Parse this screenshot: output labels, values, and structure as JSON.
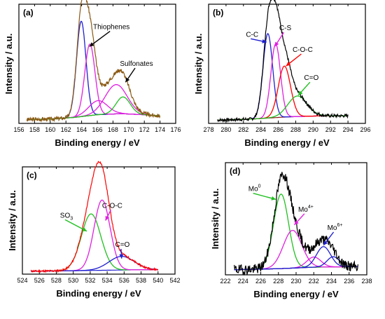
{
  "chart_data": [
    {
      "type": "line",
      "panel_label": "(a)",
      "xlabel": "Binding energy / eV",
      "ylabel": "Intensity / a.u.",
      "xlim": [
        156,
        176
      ],
      "xticks": [
        156,
        158,
        160,
        162,
        164,
        166,
        168,
        170,
        172,
        174,
        176
      ],
      "ylim": [
        0,
        1.1
      ],
      "legend": "none",
      "annotations": [
        {
          "text": "Thiophenes",
          "x": 167.8,
          "y": 0.87,
          "arrow_to": [
            165.0,
            0.71
          ],
          "color": "#000000"
        },
        {
          "text": "Sulfonates",
          "x": 171.0,
          "y": 0.53,
          "arrow_to": [
            169.6,
            0.38
          ],
          "color": "#000000"
        }
      ],
      "background": {
        "color": "#8B1A1A",
        "points": [
          [
            157,
            0.035
          ],
          [
            160,
            0.04
          ],
          [
            163,
            0.055
          ],
          [
            166,
            0.08
          ],
          [
            169,
            0.09
          ],
          [
            172,
            0.08
          ],
          [
            174,
            0.07
          ]
        ]
      },
      "peaks": [
        {
          "center": 163.95,
          "height": 0.88,
          "width": 0.6,
          "color": "#1F1FD0"
        },
        {
          "center": 165.05,
          "height": 0.66,
          "width": 0.65,
          "color": "#E020E0"
        },
        {
          "center": 166.1,
          "height": 0.13,
          "width": 1.2,
          "color": "#E020E0"
        },
        {
          "center": 168.4,
          "height": 0.27,
          "width": 1.4,
          "color": "#E020E0"
        },
        {
          "center": 169.3,
          "height": 0.155,
          "width": 0.9,
          "color": "#20C020"
        }
      ],
      "envelope_color": "#8B5A14",
      "noise": 0.018,
      "x_range": [
        157,
        174
      ],
      "seed": 3
    },
    {
      "type": "line",
      "panel_label": "(b)",
      "xlabel": "Binding energy / eV",
      "ylabel": "Intensity / a.u.",
      "xlim": [
        278,
        296
      ],
      "xticks": [
        278,
        280,
        282,
        284,
        286,
        288,
        290,
        292,
        294,
        296
      ],
      "ylim": [
        0,
        1.1
      ],
      "legend": "none",
      "annotations": [
        {
          "text": "C-C",
          "x": 283.0,
          "y": 0.8,
          "arrow_to": [
            284.65,
            0.75
          ],
          "color": "#1F1FD0"
        },
        {
          "text": "C-S",
          "x": 286.8,
          "y": 0.86,
          "arrow_to": [
            285.6,
            0.71
          ],
          "color": "#E020E0"
        },
        {
          "text": "C-O-C",
          "x": 288.8,
          "y": 0.66,
          "arrow_to": [
            286.9,
            0.53
          ],
          "color": "#FF0000"
        },
        {
          "text": "C=O",
          "x": 289.8,
          "y": 0.4,
          "arrow_to": [
            288.3,
            0.26
          ],
          "color": "#20C020"
        }
      ],
      "background": {
        "color": "#8B1A1A",
        "points": [
          [
            279,
            0.03
          ],
          [
            283,
            0.04
          ],
          [
            287,
            0.06
          ],
          [
            291,
            0.07
          ],
          [
            294,
            0.07
          ]
        ]
      },
      "peaks": [
        {
          "center": 284.8,
          "height": 0.78,
          "width": 0.55,
          "color": "#1F1FD0"
        },
        {
          "center": 285.7,
          "height": 0.68,
          "width": 0.55,
          "color": "#E020E0"
        },
        {
          "center": 286.7,
          "height": 0.47,
          "width": 0.7,
          "color": "#FF0000"
        },
        {
          "center": 288.2,
          "height": 0.19,
          "width": 1.1,
          "color": "#20C020"
        }
      ],
      "envelope_color": "#000000",
      "noise": 0.015,
      "x_range": [
        279,
        294
      ],
      "seed": 7
    },
    {
      "type": "line",
      "panel_label": "(c)",
      "xlabel": "Binding energy / eV",
      "ylabel": "Intensity / a.u.",
      "xlim": [
        524,
        542
      ],
      "xticks": [
        524,
        526,
        528,
        530,
        532,
        534,
        536,
        538,
        540,
        542
      ],
      "ylim": [
        0,
        1.1
      ],
      "legend": "none",
      "annotations": [
        {
          "text": "SO",
          "sub": "3",
          "x": 529.2,
          "y": 0.58,
          "arrow_to": [
            531.6,
            0.44
          ],
          "color": "#20C020"
        },
        {
          "text": "C-O-C",
          "x": 534.6,
          "y": 0.68,
          "arrow_to": [
            533.8,
            0.55
          ],
          "color": "#E020E0"
        },
        {
          "text": "C=O",
          "x": 535.8,
          "y": 0.28,
          "arrow_to": [
            535.7,
            0.16
          ],
          "color": "#1F1FD0"
        }
      ],
      "background": {
        "color": "#1F1FD0",
        "points": [
          [
            525,
            0.03
          ],
          [
            530,
            0.035
          ],
          [
            534,
            0.04
          ],
          [
            538,
            0.045
          ],
          [
            540,
            0.045
          ]
        ]
      },
      "peaks": [
        {
          "center": 532.1,
          "height": 0.58,
          "width": 1.15,
          "color": "#20C020"
        },
        {
          "center": 533.4,
          "height": 0.72,
          "width": 0.95,
          "color": "#E020E0"
        },
        {
          "center": 535.7,
          "height": 0.14,
          "width": 1.5,
          "color": "#1F1FD0"
        }
      ],
      "envelope_color": "#FF0000",
      "noise": 0.01,
      "x_range": [
        525,
        540
      ],
      "seed": 11
    },
    {
      "type": "line",
      "panel_label": "(d)",
      "xlabel": "Binding energy / eV",
      "ylabel": "Intensity / a.u.",
      "xlim": [
        222,
        238
      ],
      "xticks": [
        222,
        224,
        226,
        228,
        230,
        232,
        234,
        236,
        238
      ],
      "ylim": [
        0,
        1.1
      ],
      "legend": "none",
      "annotations": [
        {
          "text": "Mo",
          "sup": "0",
          "x": 225.3,
          "y": 0.82,
          "arrow_to": [
            227.7,
            0.74
          ],
          "color": "#20C020"
        },
        {
          "text": "Mo",
          "sup": "4+",
          "x": 231.1,
          "y": 0.62,
          "arrow_to": [
            229.8,
            0.49
          ],
          "color": "#E020E0"
        },
        {
          "text": "Mo",
          "sup": "6+",
          "x": 234.4,
          "y": 0.44,
          "arrow_to": [
            233.1,
            0.29
          ],
          "color": "#1F1FD0"
        }
      ],
      "background": {
        "color": "#FF0000",
        "points": [
          [
            223,
            0.05
          ],
          [
            228,
            0.06
          ],
          [
            232,
            0.075
          ],
          [
            236,
            0.08
          ],
          [
            237,
            0.08
          ]
        ]
      },
      "peaks": [
        {
          "center": 228.3,
          "height": 0.73,
          "width": 0.85,
          "color": "#20C020"
        },
        {
          "center": 229.6,
          "height": 0.37,
          "width": 1.05,
          "color": "#E020E0"
        },
        {
          "center": 232.0,
          "height": 0.1,
          "width": 0.8,
          "color": "#E020E0"
        },
        {
          "center": 233.1,
          "height": 0.2,
          "width": 0.8,
          "color": "#1F1FD0"
        },
        {
          "center": 234.2,
          "height": 0.1,
          "width": 0.7,
          "color": "#1F1FD0"
        }
      ],
      "envelope_color": "#000000",
      "noise": 0.05,
      "x_range": [
        223,
        237
      ],
      "seed": 19
    }
  ]
}
